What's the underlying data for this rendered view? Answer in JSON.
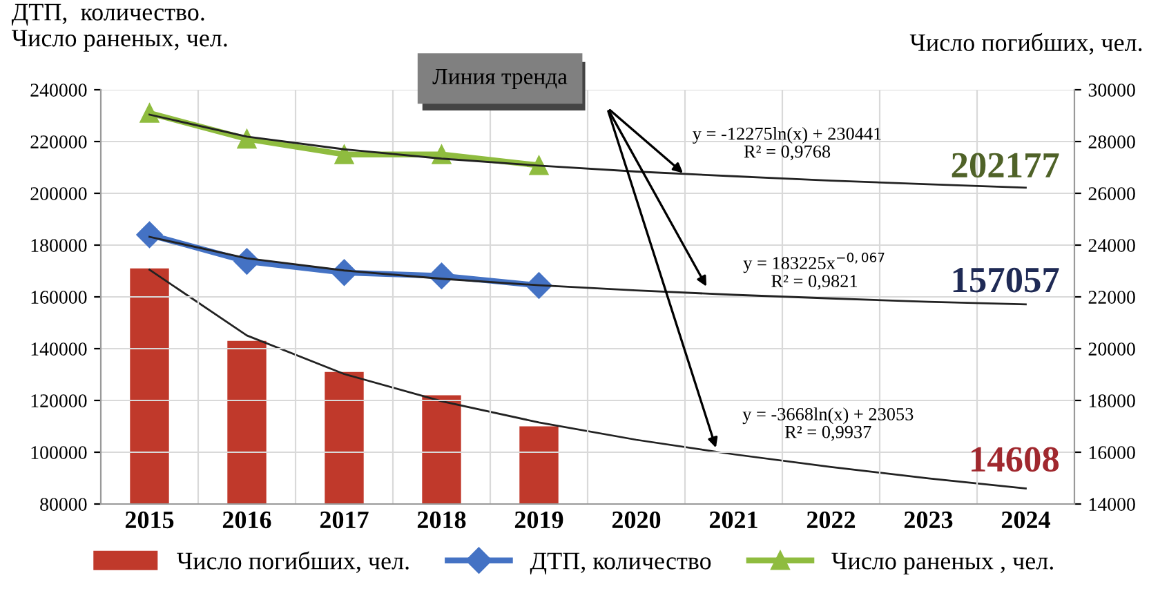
{
  "chart_data": {
    "type": "bar",
    "ylabel": "ДТП,  количество.\nЧисло раненых, чел.",
    "y2label": "Число погибших, чел.",
    "categories": [
      "2015",
      "2016",
      "2017",
      "2018",
      "2019",
      "2020",
      "2021",
      "2022",
      "2023",
      "2024"
    ],
    "series": [
      {
        "name": "Число погибших, чел.",
        "axis": "y2",
        "color": "#c0392b",
        "values": [
          23100,
          20300,
          19100,
          18200,
          17000,
          null,
          null,
          null,
          null,
          null
        ]
      },
      {
        "name": "ДТП, количество",
        "type": "line",
        "marker": "diamond",
        "color": "#4472c4",
        "values": [
          184000,
          173700,
          169400,
          168100,
          164400,
          null,
          null,
          null,
          null,
          null
        ]
      },
      {
        "name": "Число раненых , чел.",
        "type": "line",
        "marker": "triangle",
        "color": "#8fbc3f",
        "values": [
          231000,
          221000,
          215000,
          215000,
          210800,
          null,
          null,
          null,
          null,
          null
        ]
      },
      {
        "type": "line",
        "marker": "none",
        "color": "#222222",
        "values": [
          230400,
          221900,
          217000,
          213400,
          210700,
          208400,
          206600,
          204900,
          203500,
          202200
        ]
      },
      {
        "type": "line",
        "marker": "none",
        "color": "#222222",
        "values": [
          183200,
          174900,
          170200,
          167000,
          164500,
          162500,
          160800,
          159400,
          158100,
          157100
        ]
      },
      {
        "type": "line",
        "axis": "y2",
        "marker": "none",
        "color": "#222222",
        "values": [
          23050,
          20510,
          19020,
          17970,
          17150,
          16480,
          15920,
          15430,
          14990,
          14600
        ]
      }
    ],
    "ylim": [
      80000,
      240000
    ],
    "yticks": [
      80000,
      100000,
      120000,
      140000,
      160000,
      180000,
      200000,
      220000,
      240000
    ],
    "y2lim": [
      14000,
      30000
    ],
    "y2ticks": [
      14000,
      16000,
      18000,
      20000,
      22000,
      24000,
      26000,
      28000,
      30000
    ],
    "grid": true,
    "legend": "bottom",
    "annotations": [
      "Линия тренда",
      "y = -12275ln(x) + 230441\nR² = 0,9768",
      "y = 183225x$^{−0,067}$\nR² = 0,9821",
      "y = -3668ln(x) + 23053\nR² = 0,9937",
      "202177",
      "157057",
      "14608"
    ]
  }
}
